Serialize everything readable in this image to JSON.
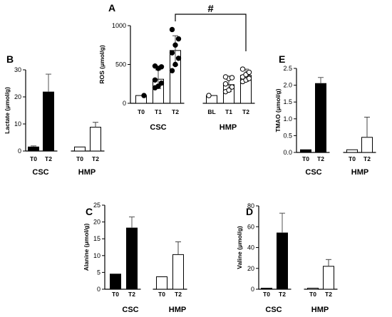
{
  "chart_data": [
    {
      "id": "A",
      "type": "bar",
      "panel_label": "A",
      "ylabel": "ROS (μmol/g)",
      "ylim": [
        0,
        1000
      ],
      "yticks": [
        "0",
        "500",
        "1000"
      ],
      "significance_label": "#",
      "groups": [
        {
          "name": "CSC",
          "bars": [
            {
              "label": "T0",
              "value": 100,
              "err": 0,
              "fill": "white",
              "points": [
                100
              ]
            },
            {
              "label": "T1",
              "value": 310,
              "err": 120,
              "fill": "white",
              "points": [
                200,
                220,
                260,
                300,
                450,
                470,
                480
              ]
            },
            {
              "label": "T2",
              "value": 680,
              "err": 190,
              "fill": "white",
              "points": [
                420,
                500,
                580,
                650,
                750,
                830,
                950
              ]
            }
          ]
        },
        {
          "name": "HMP",
          "bars": [
            {
              "label": "BL",
              "value": 100,
              "err": 0,
              "fill": "white",
              "points": [
                100
              ]
            },
            {
              "label": "T1",
              "value": 240,
              "err": 90,
              "fill": "white",
              "points": [
                150,
                170,
                210,
                250,
                320,
                330,
                340
              ]
            },
            {
              "label": "T2",
              "value": 360,
              "err": 80,
              "fill": "white",
              "points": [
                280,
                300,
                320,
                340,
                370,
                400,
                440
              ]
            }
          ]
        }
      ]
    },
    {
      "id": "B",
      "type": "bar",
      "panel_label": "B",
      "ylabel": "Lactate (μmol/g)",
      "ylim": [
        0,
        30
      ],
      "yticks": [
        "0",
        "10",
        "20",
        "30"
      ],
      "groups": [
        {
          "name": "CSC",
          "bars": [
            {
              "label": "T0",
              "value": 1.5,
              "err": 0.4,
              "fill": "black"
            },
            {
              "label": "T2",
              "value": 21.8,
              "err": 6.6,
              "fill": "black"
            }
          ]
        },
        {
          "name": "HMP",
          "bars": [
            {
              "label": "T0",
              "value": 1.5,
              "err": 0,
              "fill": "white"
            },
            {
              "label": "T2",
              "value": 8.8,
              "err": 1.8,
              "fill": "white"
            }
          ]
        }
      ]
    },
    {
      "id": "C",
      "type": "bar",
      "panel_label": "C",
      "ylabel": "Alanine (μmol/g)",
      "ylim": [
        0,
        25
      ],
      "yticks": [
        "0",
        "5",
        "10",
        "15",
        "20",
        "25"
      ],
      "groups": [
        {
          "name": "CSC",
          "bars": [
            {
              "label": "T0",
              "value": 4.5,
              "err": 0,
              "fill": "black"
            },
            {
              "label": "T2",
              "value": 18.2,
              "err": 3.3,
              "fill": "black"
            }
          ]
        },
        {
          "name": "HMP",
          "bars": [
            {
              "label": "T0",
              "value": 3.7,
              "err": 0,
              "fill": "white"
            },
            {
              "label": "T2",
              "value": 10.3,
              "err": 3.8,
              "fill": "white"
            }
          ]
        }
      ]
    },
    {
      "id": "D",
      "type": "bar",
      "panel_label": "D",
      "ylabel": "Valine (μmol/g)",
      "ylim": [
        0,
        80
      ],
      "yticks": [
        "0",
        "20",
        "40",
        "60",
        "80"
      ],
      "groups": [
        {
          "name": "CSC",
          "bars": [
            {
              "label": "T0",
              "value": 1,
              "err": 0,
              "fill": "black"
            },
            {
              "label": "T2",
              "value": 54,
              "err": 19,
              "fill": "black"
            }
          ]
        },
        {
          "name": "HMP",
          "bars": [
            {
              "label": "T0",
              "value": 1,
              "err": 0,
              "fill": "white"
            },
            {
              "label": "T2",
              "value": 22,
              "err": 6.5,
              "fill": "white"
            }
          ]
        }
      ]
    },
    {
      "id": "E",
      "type": "bar",
      "panel_label": "E",
      "ylabel": "TMAO (μmol/g)",
      "ylim": [
        0,
        2.5
      ],
      "yticks": [
        "0.0",
        "0.5",
        "1.0",
        "1.5",
        "2.0",
        "2.5"
      ],
      "groups": [
        {
          "name": "CSC",
          "bars": [
            {
              "label": "T0",
              "value": 0.08,
              "err": 0,
              "fill": "black"
            },
            {
              "label": "T2",
              "value": 2.05,
              "err": 0.18,
              "fill": "black"
            }
          ]
        },
        {
          "name": "HMP",
          "bars": [
            {
              "label": "T0",
              "value": 0.08,
              "err": 0,
              "fill": "white"
            },
            {
              "label": "T2",
              "value": 0.45,
              "err": 0.6,
              "fill": "white"
            }
          ]
        }
      ]
    }
  ]
}
